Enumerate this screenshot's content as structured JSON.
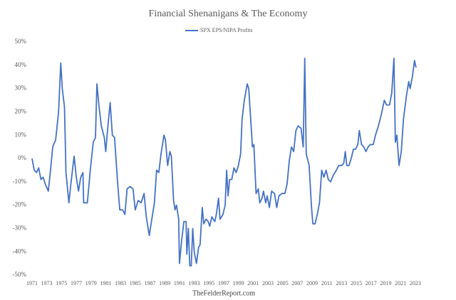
{
  "chart_data": {
    "type": "line",
    "title": "Financial Shenanigans & The Economy",
    "source": "TheFelderReport.com",
    "series": [
      {
        "name": "SPX EPS/NIPA Profits",
        "color": "#4472c4",
        "x": [
          1971.0,
          1971.3,
          1971.6,
          1971.9,
          1972.2,
          1972.5,
          1972.8,
          1973.2,
          1973.5,
          1973.8,
          1974.2,
          1974.6,
          1974.9,
          1975.1,
          1975.4,
          1975.6,
          1976.0,
          1976.3,
          1976.7,
          1977.0,
          1977.3,
          1977.6,
          1977.9,
          1978.0,
          1978.5,
          1978.9,
          1979.3,
          1979.6,
          1979.8,
          1980.1,
          1980.4,
          1980.8,
          1981.0,
          1981.3,
          1981.6,
          1981.9,
          1982.2,
          1982.6,
          1982.9,
          1983.3,
          1983.6,
          1983.9,
          1984.3,
          1984.7,
          1985.0,
          1985.4,
          1985.8,
          1986.2,
          1986.5,
          1986.9,
          1987.3,
          1987.6,
          1987.9,
          1988.2,
          1988.5,
          1988.9,
          1989.1,
          1989.4,
          1989.7,
          1989.9,
          1990.2,
          1990.4,
          1990.6,
          1990.9,
          1991.0,
          1991.3,
          1991.6,
          1991.9,
          1992.0,
          1992.2,
          1992.4,
          1992.6,
          1992.8,
          1993.0,
          1993.3,
          1993.6,
          1993.8,
          1994.1,
          1994.3,
          1994.6,
          1994.9,
          1995.1,
          1995.4,
          1995.8,
          1996.0,
          1996.3,
          1996.5,
          1996.9,
          1997.2,
          1997.4,
          1997.6,
          1997.8,
          1998.1,
          1998.4,
          1998.7,
          1999.0,
          1999.3,
          1999.5,
          1999.8,
          2000.2,
          2000.4,
          2000.6,
          2000.9,
          2001.1,
          2001.4,
          2001.7,
          2001.9,
          2002.2,
          2002.4,
          2002.7,
          2002.9,
          2003.2,
          2003.5,
          2003.9,
          2004.2,
          2004.5,
          2004.9,
          2005.3,
          2005.6,
          2005.9,
          2006.2,
          2006.5,
          2006.8,
          2007.1,
          2007.5,
          2007.8,
          2008.0,
          2008.2,
          2008.6,
          2008.9,
          2009.1,
          2009.4,
          2009.7,
          2010.0,
          2010.3,
          2010.6,
          2010.9,
          2011.2,
          2011.5,
          2011.9,
          2012.3,
          2012.6,
          2013.0,
          2013.3,
          2013.5,
          2013.7,
          2014.0,
          2014.3,
          2014.6,
          2014.9,
          2015.2,
          2015.4,
          2015.7,
          2016.0,
          2016.3,
          2016.6,
          2016.9,
          2017.3,
          2017.6,
          2018.0,
          2018.4,
          2018.8,
          2019.1,
          2019.5,
          2019.8,
          2020.1,
          2020.3,
          2020.5,
          2020.8,
          2021.1,
          2021.4,
          2021.8,
          2022.1,
          2022.3,
          2022.6,
          2022.9,
          2023.1
        ],
        "values": [
          0,
          -5,
          -6,
          -4,
          -9,
          -8,
          -11,
          -14,
          -5,
          5,
          8,
          20,
          41,
          30,
          22,
          -6,
          -19,
          -10,
          1,
          -8,
          -14,
          -8,
          -6,
          -19,
          -19,
          -5,
          7,
          9,
          32,
          22,
          14,
          9,
          3,
          14,
          24,
          10,
          9,
          -10,
          -22,
          -22,
          -24,
          -13,
          -12,
          -13,
          -22,
          -18,
          -19,
          -15,
          -25,
          -33,
          -25,
          -19,
          -5,
          -6,
          2,
          10,
          8,
          -3,
          3,
          1,
          -18,
          -22,
          -20,
          -26,
          -45,
          -35,
          -27,
          -27,
          -41,
          -30,
          -46,
          -46,
          -30,
          -40,
          -45,
          -38,
          -37,
          -21,
          -28,
          -26,
          -27,
          -29,
          -25,
          -27,
          -24,
          -17,
          -26,
          -24,
          -20,
          -5,
          -16,
          -9,
          -9,
          -4,
          -6,
          -3,
          2,
          17,
          25,
          32,
          30,
          20,
          5,
          6,
          -15,
          -13,
          -19,
          -17,
          -14,
          -19,
          -16,
          -21,
          -14,
          -15,
          -21,
          -16,
          -15,
          -15,
          -11,
          -1,
          5,
          3,
          12,
          14,
          13,
          5,
          43,
          2,
          -3,
          -20,
          -28,
          -28,
          -24,
          -19,
          -5,
          -8,
          -5,
          -9,
          -10,
          -7,
          -5,
          -3,
          -3,
          -2,
          3,
          -3,
          -3,
          0,
          4,
          4,
          6,
          12,
          6,
          5,
          3,
          5,
          6,
          6,
          10,
          14,
          19,
          25,
          23,
          23,
          28,
          43,
          7,
          10,
          -3,
          3,
          17,
          27,
          33,
          30,
          35,
          42,
          39
        ]
      }
    ],
    "xlim": [
      1971,
      2023.4
    ],
    "xticks": [
      1971,
      1973,
      1975,
      1977,
      1979,
      1981,
      1983,
      1985,
      1987,
      1989,
      1991,
      1993,
      1995,
      1997,
      1999,
      2001,
      2003,
      2005,
      2007,
      2009,
      2011,
      2013,
      2015,
      2017,
      2019,
      2021,
      2023
    ],
    "ylim": [
      -50,
      50
    ],
    "yticks": [
      {
        "value": -50,
        "label": "-50%"
      },
      {
        "value": -40,
        "label": "-40%"
      },
      {
        "value": -30,
        "label": "-30%"
      },
      {
        "value": -20,
        "label": "-20%"
      },
      {
        "value": -10,
        "label": "-10%"
      },
      {
        "value": 0,
        "label": "0%"
      },
      {
        "value": 10,
        "label": "10%"
      },
      {
        "value": 20,
        "label": "20%"
      },
      {
        "value": 30,
        "label": "30%"
      },
      {
        "value": 40,
        "label": "40%"
      },
      {
        "value": 50,
        "label": "50%"
      }
    ],
    "legend": "top"
  }
}
